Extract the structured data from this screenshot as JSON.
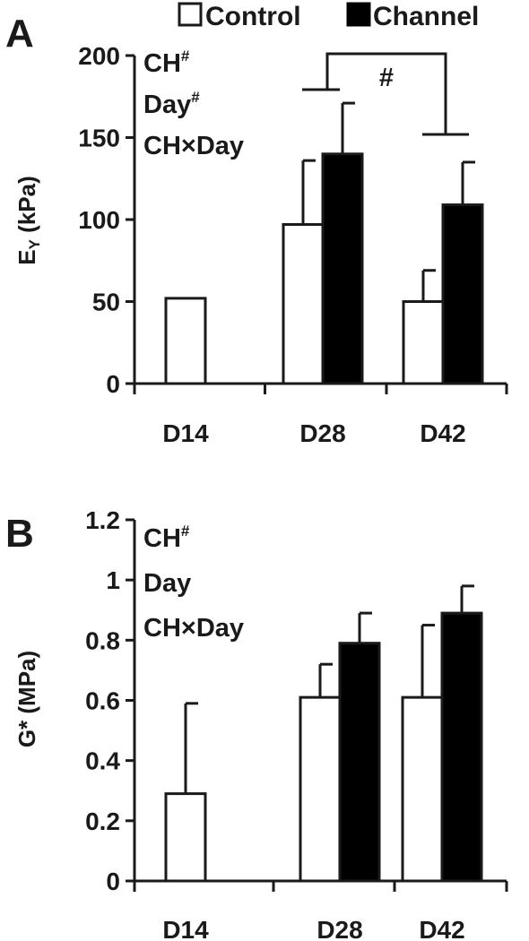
{
  "legend": {
    "control_label": "Control",
    "channel_label": "Channel"
  },
  "colors": {
    "control": "#ffffff",
    "channel": "#000000",
    "ink": "#1a1a1a"
  },
  "chart_data": [
    {
      "type": "bar",
      "panel_label": "A",
      "ylabel_main": "E",
      "ylabel_sub": "Y",
      "ylabel_unit": " (kPa)",
      "categories": [
        "D14",
        "D28",
        "D42"
      ],
      "ylim": [
        0,
        200
      ],
      "yticks": [
        0,
        50,
        100,
        150,
        200
      ],
      "ytick_labels": [
        "0",
        "50",
        "100",
        "150",
        "200"
      ],
      "series": [
        {
          "name": "Control",
          "values": [
            52,
            97,
            50
          ],
          "errors": [
            0,
            39,
            19
          ]
        },
        {
          "name": "Channel",
          "values": [
            null,
            140,
            109
          ],
          "errors": [
            null,
            31,
            26
          ]
        }
      ],
      "annotations": [
        {
          "text": "CH",
          "sup": "#"
        },
        {
          "text": "Day",
          "sup": "#"
        },
        {
          "text": "CH×Day",
          "sup": ""
        }
      ],
      "significance": {
        "label": "#",
        "between": [
          "D28",
          "D42"
        ]
      }
    },
    {
      "type": "bar",
      "panel_label": "B",
      "ylabel_main": "G* (MPa)",
      "categories": [
        "D14",
        "D28",
        "D42"
      ],
      "ylim": [
        0,
        1.2
      ],
      "yticks": [
        0,
        0.2,
        0.4,
        0.6,
        0.8,
        1.0,
        1.2
      ],
      "ytick_labels": [
        "0",
        "0.2",
        "0.4",
        "0.6",
        "0.8",
        "1",
        "1.2"
      ],
      "series": [
        {
          "name": "Control",
          "values": [
            0.29,
            0.61,
            0.61
          ],
          "errors": [
            0.3,
            0.11,
            0.24
          ]
        },
        {
          "name": "Channel",
          "values": [
            null,
            0.79,
            0.89
          ],
          "errors": [
            null,
            0.1,
            0.09
          ]
        }
      ],
      "annotations": [
        {
          "text": "CH",
          "sup": "#"
        },
        {
          "text": "Day",
          "sup": ""
        },
        {
          "text": "CH×Day",
          "sup": ""
        }
      ]
    }
  ]
}
